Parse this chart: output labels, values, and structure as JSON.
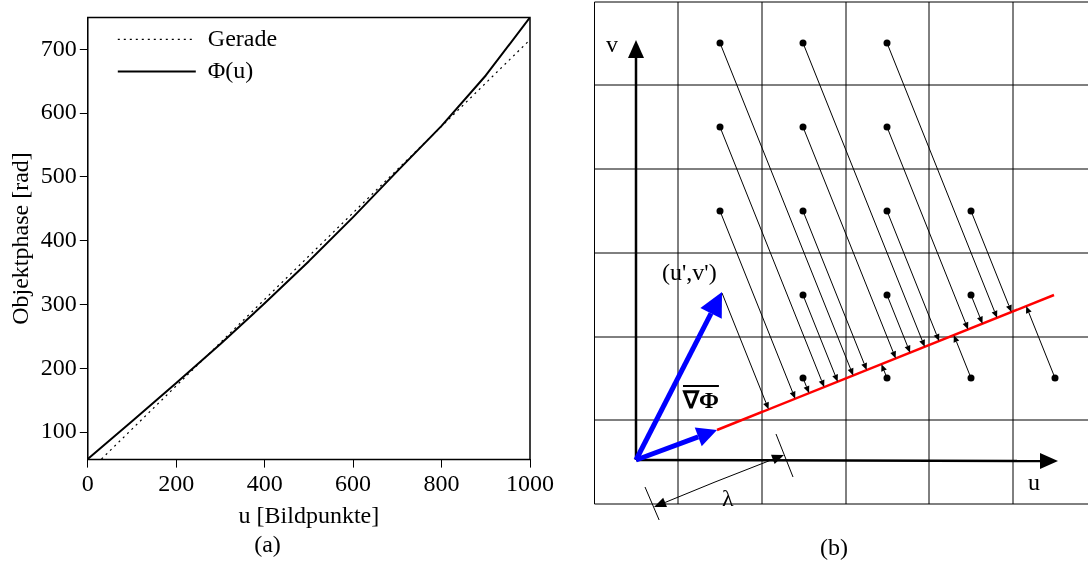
{
  "chart_data": [
    {
      "type": "line",
      "title": "(a)",
      "xlabel": "u [Bildpunkte]",
      "ylabel": "Objektphase [rad]",
      "series": [
        {
          "name": "Gerade",
          "color": "#000000",
          "line_style": "dotted",
          "x": [
            31,
            1000
          ],
          "values": [
            58,
            715
          ]
        },
        {
          "name": "Φ(u)",
          "color": "#000000",
          "line_style": "solid",
          "x": [
            0,
            100,
            200,
            300,
            400,
            500,
            600,
            700,
            800,
            900,
            1000
          ],
          "values": [
            58,
            117,
            177,
            238,
            302,
            368,
            437,
            509,
            580,
            659,
            750
          ]
        }
      ],
      "xlim": [
        0,
        1000
      ],
      "xticks": [
        0,
        200,
        400,
        600,
        800,
        1000
      ],
      "ylim": [
        57,
        750
      ],
      "yticks": [
        100,
        200,
        300,
        400,
        500,
        600,
        700
      ],
      "legend": "top left",
      "marker": "none"
    },
    {
      "type": "other",
      "title": "(b)",
      "annotations": [
        "v",
        "u",
        "(u',v')",
        "∇Φ",
        "λ"
      ]
    }
  ]
}
